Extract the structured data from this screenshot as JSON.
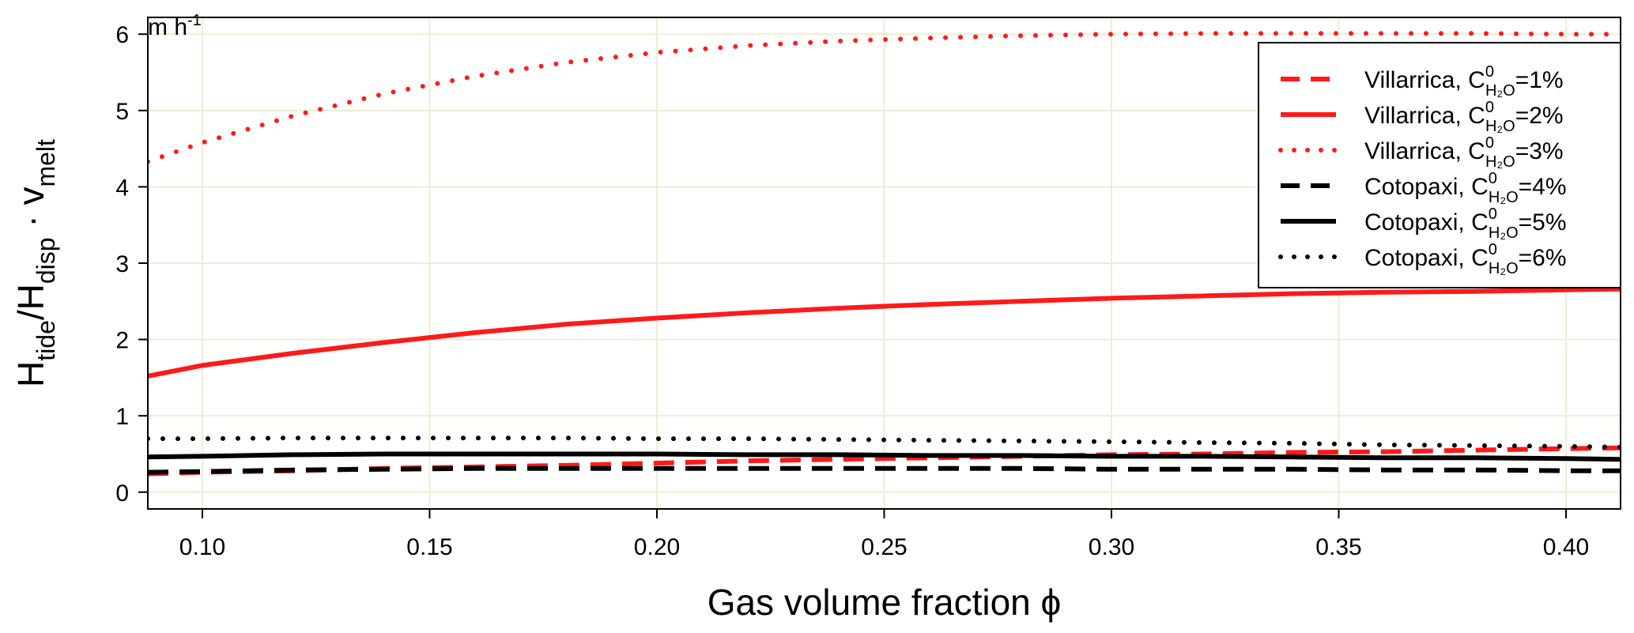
{
  "chart_data": {
    "type": "line",
    "title": "",
    "xlabel": "Gas volume fraction ϕ",
    "ylabel": {
      "main": "H",
      "sub1": "tide",
      "mid": "/H",
      "sub2": "disp",
      "dot": " · v",
      "sub3": "melt"
    },
    "unit": {
      "base": "m h",
      "sup": "-1"
    },
    "xlim": [
      0.088,
      0.412
    ],
    "ylim": [
      -0.22,
      6.22
    ],
    "x_ticks": [
      0.1,
      0.15,
      0.2,
      0.25,
      0.3,
      0.35,
      0.4
    ],
    "x_tick_labels": [
      "0.10",
      "0.15",
      "0.20",
      "0.25",
      "0.30",
      "0.35",
      "0.40"
    ],
    "y_ticks": [
      0,
      1,
      2,
      3,
      4,
      5,
      6
    ],
    "y_tick_labels": [
      "0",
      "1",
      "2",
      "3",
      "4",
      "5",
      "6"
    ],
    "grid": true,
    "grid_color": "#efebd5",
    "legend_position": "top-right",
    "x": [
      0.088,
      0.1,
      0.12,
      0.14,
      0.16,
      0.18,
      0.2,
      0.22,
      0.24,
      0.26,
      0.28,
      0.3,
      0.32,
      0.34,
      0.36,
      0.38,
      0.4,
      0.412
    ],
    "series": [
      {
        "legend_prefix": "Villarrica, C",
        "legend_sup": "0",
        "legend_sub": "H₂O",
        "legend_value": "=1%",
        "color": "#ff1a1a",
        "style": "dashed",
        "values": [
          0.24,
          0.26,
          0.28,
          0.31,
          0.33,
          0.35,
          0.38,
          0.41,
          0.43,
          0.45,
          0.47,
          0.49,
          0.5,
          0.52,
          0.53,
          0.55,
          0.57,
          0.58
        ]
      },
      {
        "legend_prefix": "Villarrica, C",
        "legend_sup": "0",
        "legend_sub": "H₂O",
        "legend_value": "=2%",
        "color": "#ff1a1a",
        "style": "solid",
        "values": [
          1.52,
          1.66,
          1.82,
          1.96,
          2.09,
          2.2,
          2.28,
          2.35,
          2.41,
          2.46,
          2.5,
          2.54,
          2.57,
          2.6,
          2.62,
          2.63,
          2.65,
          2.66
        ]
      },
      {
        "legend_prefix": "Villarrica, C",
        "legend_sup": "0",
        "legend_sub": "H₂O",
        "legend_value": "=3%",
        "color": "#ff1a1a",
        "style": "dotted",
        "values": [
          4.33,
          4.58,
          4.93,
          5.22,
          5.45,
          5.63,
          5.76,
          5.85,
          5.91,
          5.95,
          5.98,
          6.0,
          6.01,
          6.01,
          6.01,
          6.01,
          6.0,
          6.0
        ]
      },
      {
        "legend_prefix": "Cotopaxi, C",
        "legend_sup": "0",
        "legend_sub": "H₂O",
        "legend_value": "=4%",
        "color": "#000000",
        "style": "dashed",
        "values": [
          0.26,
          0.27,
          0.29,
          0.3,
          0.31,
          0.31,
          0.31,
          0.31,
          0.31,
          0.31,
          0.31,
          0.3,
          0.3,
          0.3,
          0.29,
          0.29,
          0.28,
          0.28
        ]
      },
      {
        "legend_prefix": "Cotopaxi, C",
        "legend_sup": "0",
        "legend_sub": "H₂O",
        "legend_value": "=5%",
        "color": "#000000",
        "style": "solid",
        "values": [
          0.46,
          0.47,
          0.49,
          0.5,
          0.5,
          0.5,
          0.5,
          0.49,
          0.49,
          0.48,
          0.48,
          0.47,
          0.47,
          0.46,
          0.45,
          0.45,
          0.44,
          0.43
        ]
      },
      {
        "legend_prefix": "Cotopaxi, C",
        "legend_sup": "0",
        "legend_sub": "H₂O",
        "legend_value": "=6%",
        "color": "#000000",
        "style": "dotted",
        "values": [
          0.7,
          0.7,
          0.71,
          0.71,
          0.71,
          0.71,
          0.7,
          0.7,
          0.69,
          0.68,
          0.67,
          0.66,
          0.65,
          0.64,
          0.62,
          0.61,
          0.6,
          0.59
        ]
      }
    ]
  }
}
